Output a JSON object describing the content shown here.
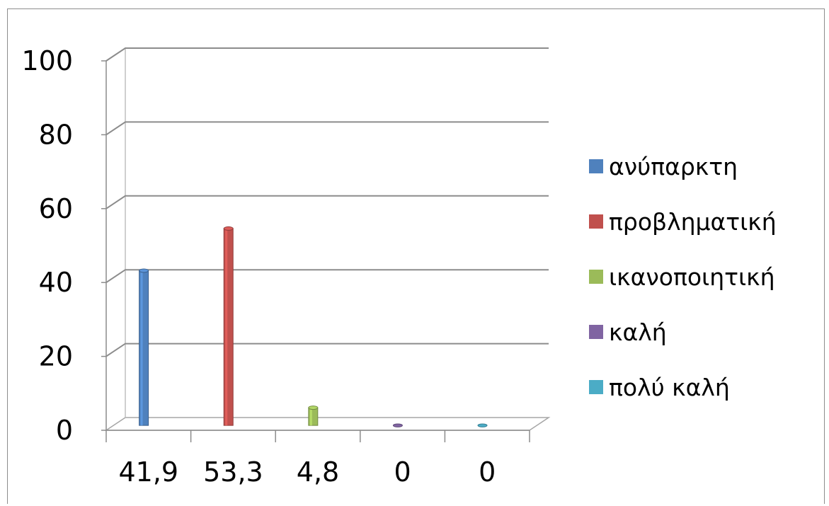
{
  "chart_data": {
    "type": "bar",
    "categories": [
      "41,9",
      "53,3",
      "4,8",
      "0",
      "0"
    ],
    "series": [
      {
        "name": "ανύπαρκτη",
        "color": "#4f81bd",
        "values": [
          41.9,
          0,
          0,
          0,
          0
        ]
      },
      {
        "name": "προβληματική",
        "color": "#c0504d",
        "values": [
          0,
          53.3,
          0,
          0,
          0
        ]
      },
      {
        "name": "ικανοποιητική",
        "color": "#9bbb59",
        "values": [
          0,
          0,
          4.8,
          0,
          0
        ]
      },
      {
        "name": "καλή",
        "color": "#8064a2",
        "values": [
          0,
          0,
          0,
          0,
          0
        ]
      },
      {
        "name": "πολύ καλή",
        "color": "#4bacc6",
        "values": [
          0,
          0,
          0,
          0,
          0
        ]
      }
    ],
    "yticks": [
      "0",
      "20",
      "40",
      "60",
      "80",
      "100"
    ],
    "ylim": [
      0,
      100
    ],
    "grid": true,
    "legend_position": "right",
    "style": "3d-column"
  }
}
